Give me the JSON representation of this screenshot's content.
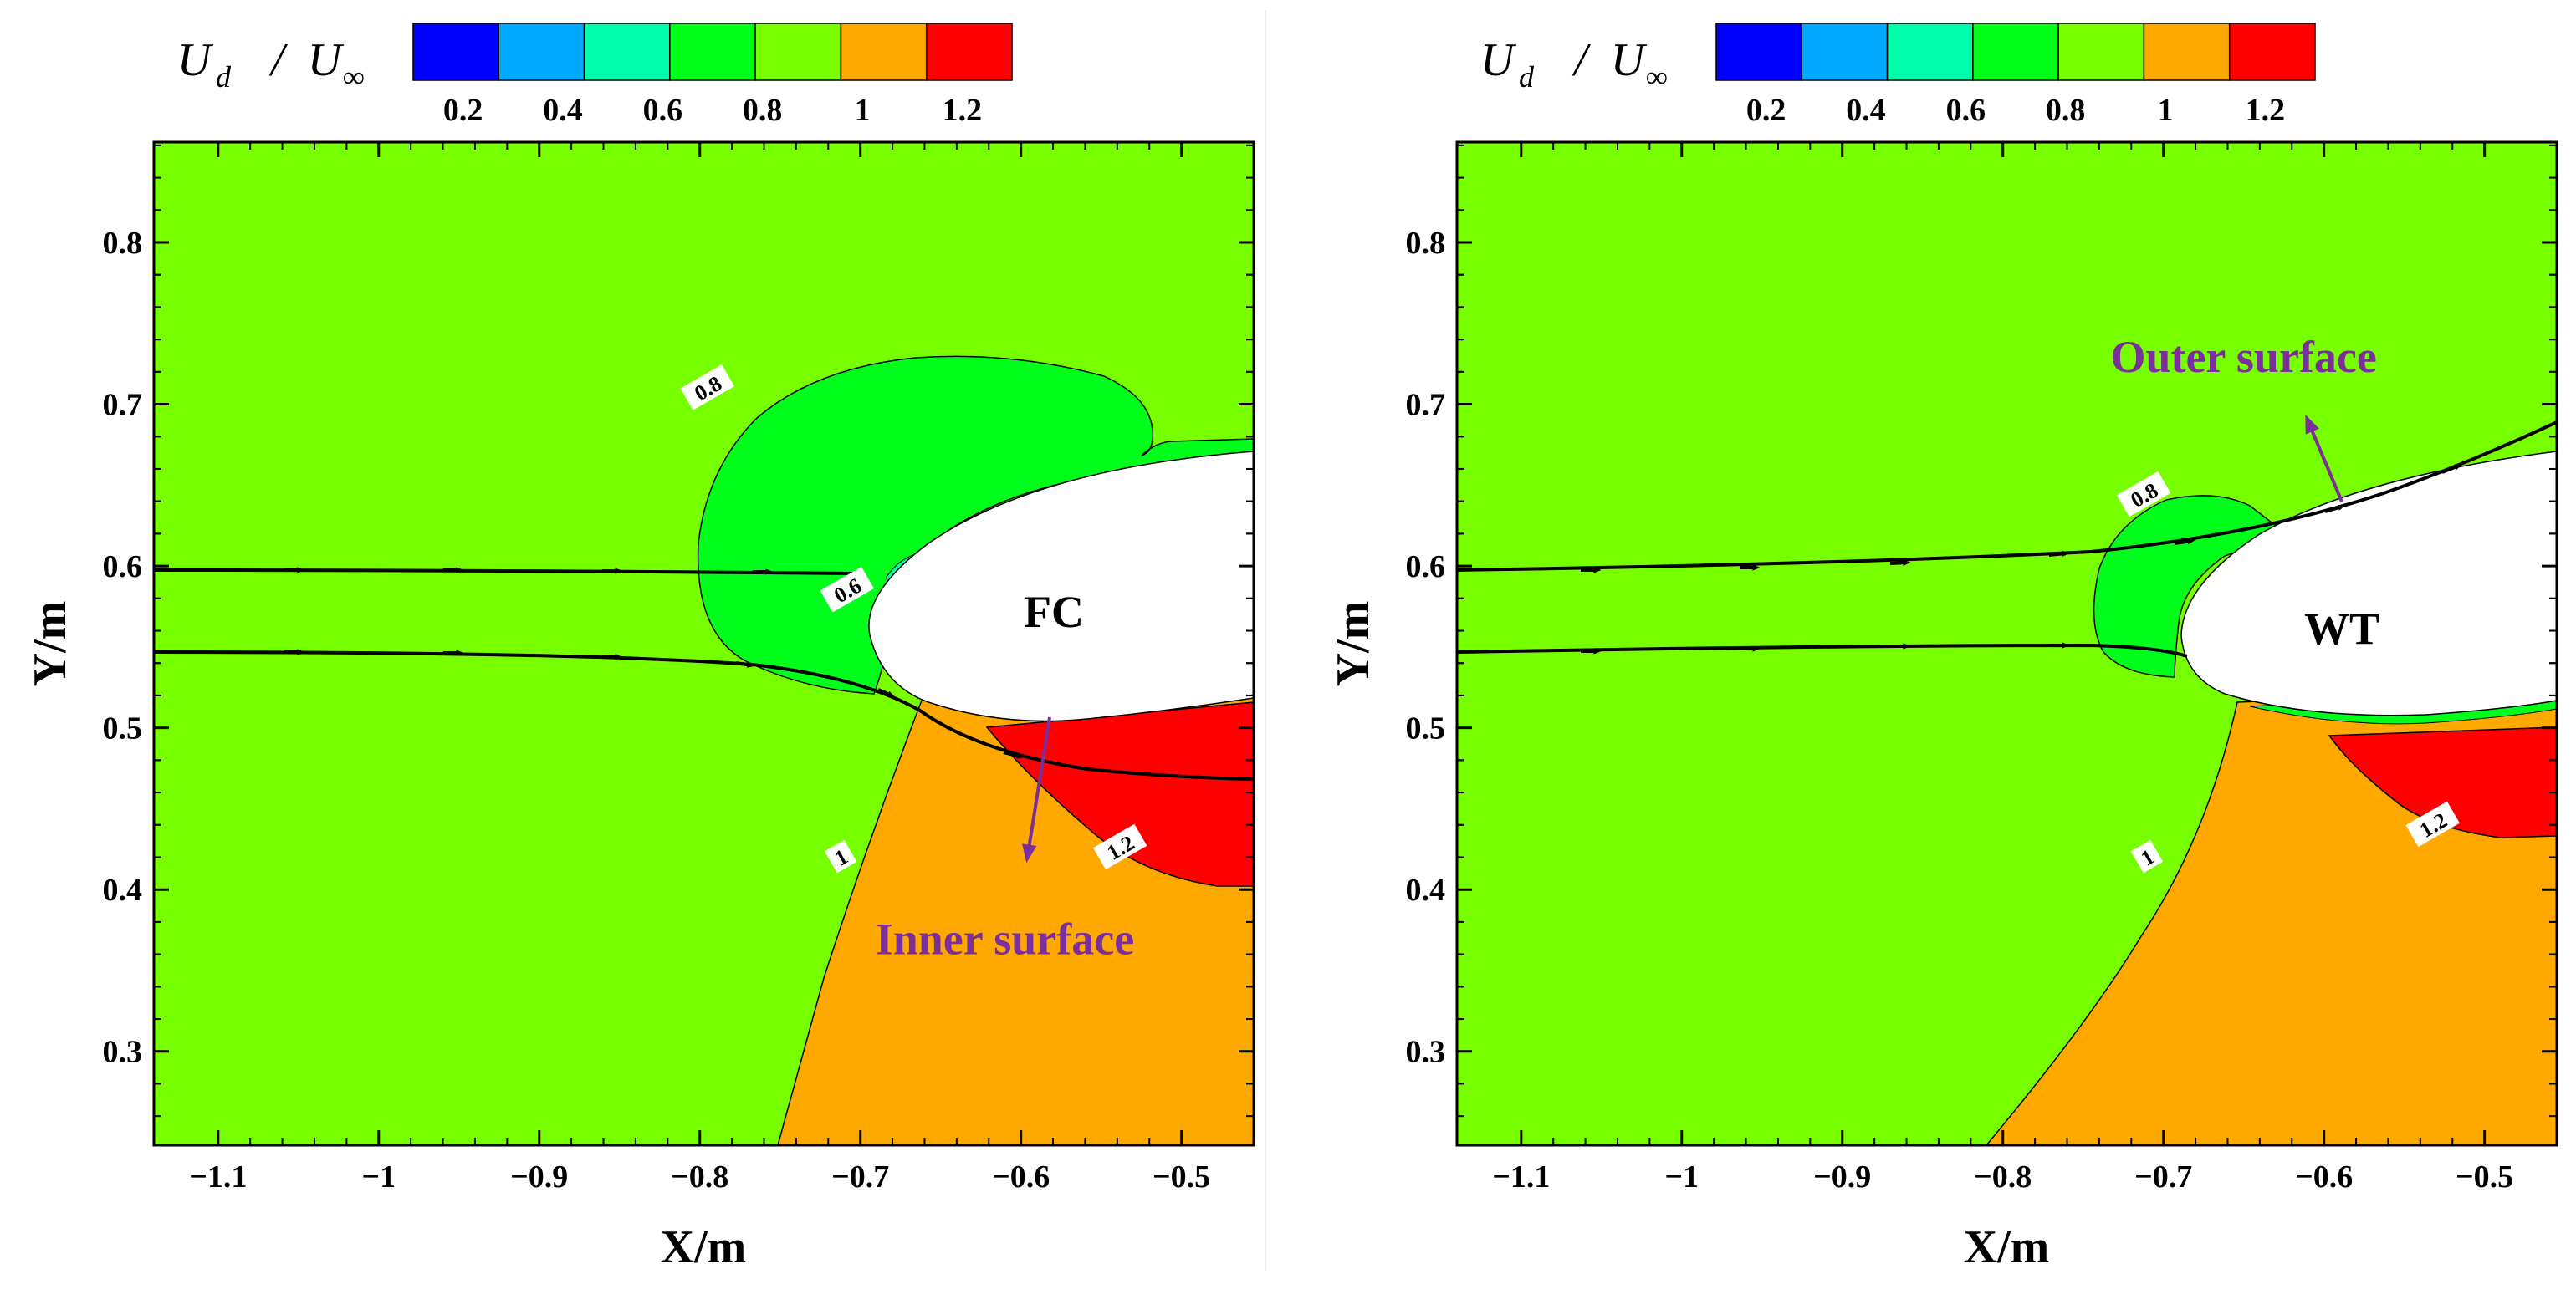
{
  "chart_data": [
    {
      "type": "heatmap",
      "panel": "left",
      "case_label": "FC",
      "xlabel": "X/m",
      "ylabel": "Y/m",
      "xlim": [
        -1.14,
        -0.455
      ],
      "ylim": [
        0.242,
        0.862
      ],
      "x_ticks": [
        -1.1,
        -1,
        -0.9,
        -0.8,
        -0.7,
        -0.6,
        -0.5
      ],
      "x_tick_labels": [
        "−1.1",
        "−1",
        "−0.9",
        "−0.8",
        "−0.7",
        "−0.6",
        "−0.5"
      ],
      "y_ticks": [
        0.3,
        0.4,
        0.5,
        0.6,
        0.7,
        0.8
      ],
      "y_tick_labels": [
        "0.3",
        "0.4",
        "0.5",
        "0.6",
        "0.7",
        "0.8"
      ],
      "colorbar": {
        "title_main": "U",
        "title_sub_num": "d",
        "title_sep": " / ",
        "title_den": "U",
        "title_sub_den": "∞",
        "levels": [
          0.1,
          0.3,
          0.5,
          0.7,
          0.9,
          1.1,
          1.3
        ],
        "colors": [
          "#0000ff",
          "#00a8ff",
          "#00ffaa",
          "#00ff1a",
          "#77ff00",
          "#ffa800",
          "#ff0000"
        ],
        "tick_values": [
          0.2,
          0.4,
          0.6,
          0.8,
          1,
          1.2
        ],
        "tick_labels": [
          "0.2",
          "0.4",
          "0.6",
          "0.8",
          "1",
          "1.2"
        ]
      },
      "contour_labels": [
        {
          "text": "0.8",
          "x": -0.795,
          "y": 0.71
        },
        {
          "text": "0.6",
          "x": -0.708,
          "y": 0.585
        },
        {
          "text": "1",
          "x": -0.712,
          "y": 0.42
        },
        {
          "text": "1.2",
          "x": -0.538,
          "y": 0.426
        }
      ],
      "streamlines": [
        {
          "y_start": 0.6,
          "y_end": 0.598
        },
        {
          "y_start": 0.55,
          "y_end": 0.47
        }
      ],
      "annotation": {
        "text": "Inner surface",
        "x": -0.61,
        "y": 0.36
      }
    },
    {
      "type": "heatmap",
      "panel": "right",
      "case_label": "WT",
      "xlabel": "X/m",
      "ylabel": "Y/m",
      "xlim": [
        -1.14,
        -0.455
      ],
      "ylim": [
        0.242,
        0.862
      ],
      "x_ticks": [
        -1.1,
        -1,
        -0.9,
        -0.8,
        -0.7,
        -0.6,
        -0.5
      ],
      "x_tick_labels": [
        "−1.1",
        "−1",
        "−0.9",
        "−0.8",
        "−0.7",
        "−0.6",
        "−0.5"
      ],
      "y_ticks": [
        0.3,
        0.4,
        0.5,
        0.6,
        0.7,
        0.8
      ],
      "y_tick_labels": [
        "0.3",
        "0.4",
        "0.5",
        "0.6",
        "0.7",
        "0.8"
      ],
      "colorbar": {
        "title_main": "U",
        "title_sub_num": "d",
        "title_sep": " / ",
        "title_den": "U",
        "title_sub_den": "∞",
        "levels": [
          0.1,
          0.3,
          0.5,
          0.7,
          0.9,
          1.1,
          1.3
        ],
        "colors": [
          "#0000ff",
          "#00a8ff",
          "#00ffaa",
          "#00ff1a",
          "#77ff00",
          "#ffa800",
          "#ff0000"
        ],
        "tick_values": [
          0.2,
          0.4,
          0.6,
          0.8,
          1,
          1.2
        ],
        "tick_labels": [
          "0.2",
          "0.4",
          "0.6",
          "0.8",
          "1",
          "1.2"
        ]
      },
      "contour_labels": [
        {
          "text": "0.8",
          "x": -0.712,
          "y": 0.644
        },
        {
          "text": "1",
          "x": -0.71,
          "y": 0.42
        },
        {
          "text": "1.2",
          "x": -0.532,
          "y": 0.44
        }
      ],
      "streamlines": [
        {
          "y_start": 0.6,
          "y_end": 0.69
        },
        {
          "y_start": 0.55,
          "y_end": 0.54
        }
      ],
      "annotation": {
        "text": "Outer surface",
        "x": -0.65,
        "y": 0.72
      }
    }
  ]
}
